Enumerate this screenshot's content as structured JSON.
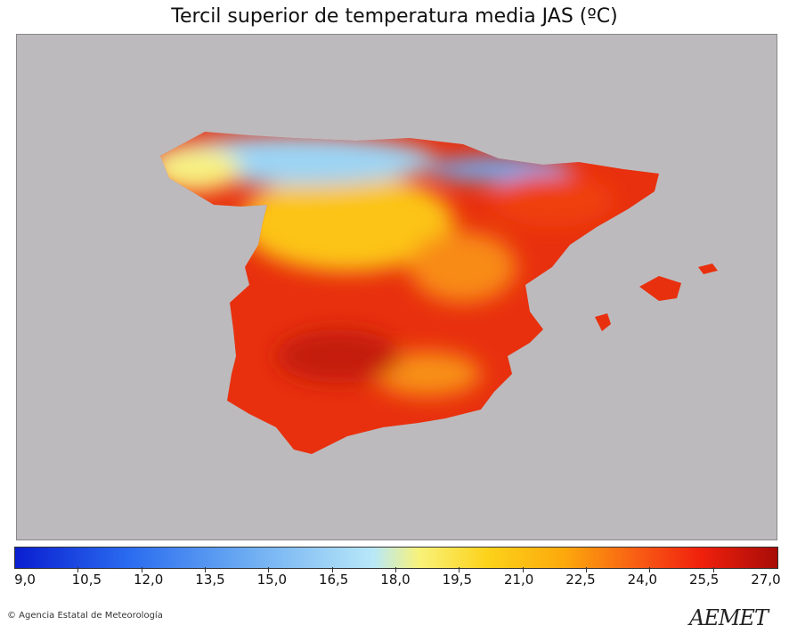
{
  "title": "Tercil superior de temperatura media JAS (ºC)",
  "colorbar": {
    "ticks": [
      "9,0",
      "10,5",
      "12,0",
      "13,5",
      "15,0",
      "16,5",
      "18,0",
      "19,5",
      "21,0",
      "22,5",
      "24,0",
      "25,5",
      "27,0"
    ],
    "min": 9.0,
    "max": 27.0
  },
  "colors": {
    "background": "#bdbabd",
    "hot": "#e8300e",
    "warm": "#fcd21a",
    "cool": "#6aaaf2"
  },
  "credit": "© Agencia Estatal de Meteorología",
  "logo": "AEMET"
}
